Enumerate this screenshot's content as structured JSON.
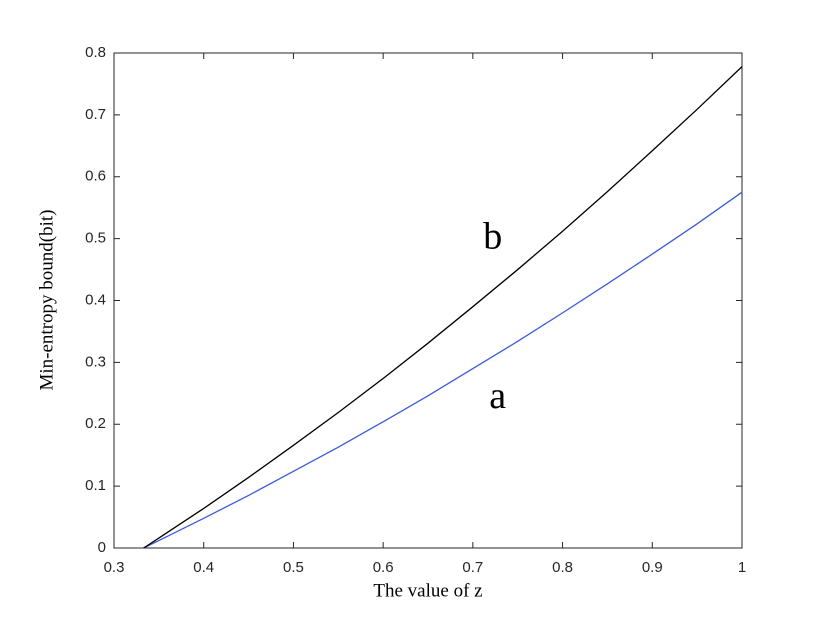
{
  "chart_data": {
    "type": "line",
    "x_label": "The value of z",
    "y_label": "Min-entropy bound(bit)",
    "x": [
      0.333,
      0.35,
      0.4,
      0.45,
      0.5,
      0.55,
      0.6,
      0.65,
      0.7,
      0.75,
      0.8,
      0.85,
      0.9,
      0.95,
      1
    ],
    "series": [
      {
        "name": "a",
        "color": "#3a5bd9",
        "values": [
          0,
          0.012,
          0.048,
          0.085,
          0.124,
          0.163,
          0.204,
          0.246,
          0.29,
          0.334,
          0.38,
          0.427,
          0.475,
          0.524,
          0.575
        ]
      },
      {
        "name": "b",
        "color": "#000000",
        "values": [
          0,
          0.016,
          0.064,
          0.114,
          0.166,
          0.219,
          0.274,
          0.331,
          0.39,
          0.45,
          0.512,
          0.576,
          0.642,
          0.709,
          0.778
        ]
      }
    ],
    "xlim": [
      0.3,
      1
    ],
    "xticks": [
      0.3,
      0.4,
      0.5,
      0.6,
      0.7,
      0.8,
      0.9,
      1
    ],
    "ylim": [
      0,
      0.8
    ],
    "yticks": [
      0,
      0.1,
      0.2,
      0.3,
      0.4,
      0.5,
      0.6,
      0.7,
      0.8
    ],
    "grid": false
  }
}
